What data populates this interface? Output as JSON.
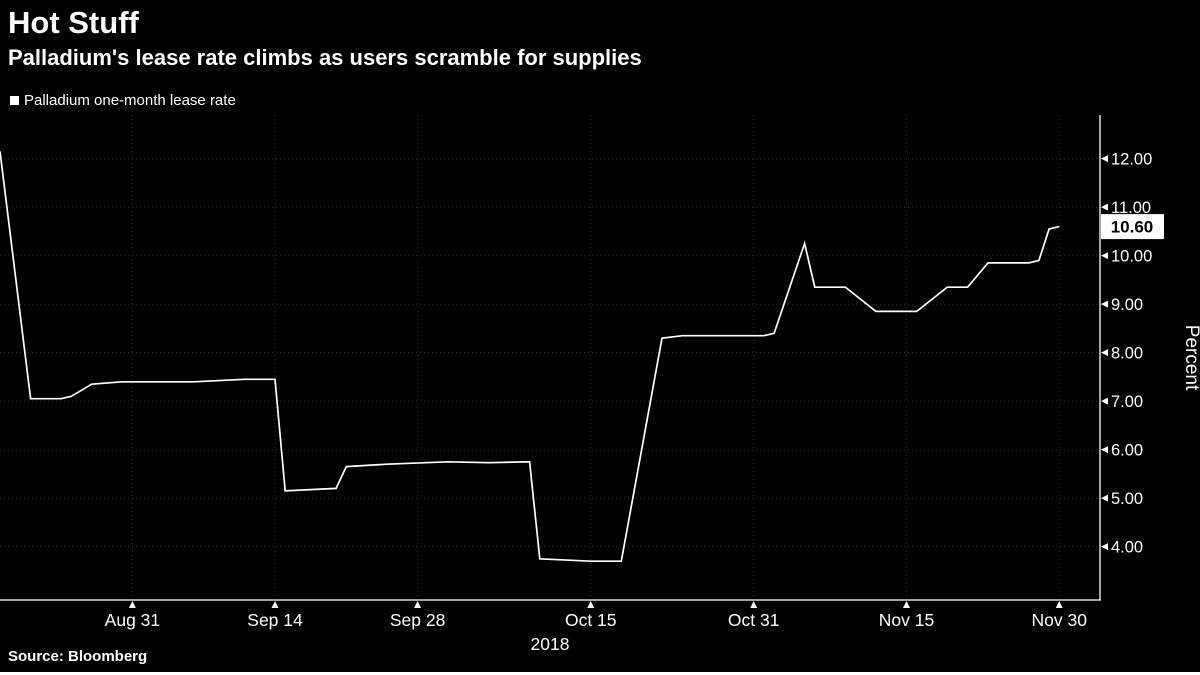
{
  "footer": {
    "source": "Source: Bloomberg"
  },
  "colors": {
    "background": "#000000",
    "grid": "#303030",
    "text": "#ffffff",
    "line": "#ffffff",
    "badge_bg": "#ffffff",
    "badge_text": "#000000"
  },
  "chart_data": {
    "type": "line",
    "title": "Hot Stuff",
    "subtitle": "Palladium's lease rate climbs as users scramble for supplies",
    "ylabel": "Percent",
    "year_label": "2018",
    "grid": true,
    "legend_position": "top-left",
    "ylim": [
      2.9,
      12.9
    ],
    "y_ticks": [
      4,
      5,
      6,
      7,
      8,
      9,
      10,
      11,
      12
    ],
    "x_domain": [
      "Aug 18, 2018",
      "Dec 4, 2018"
    ],
    "x_ticks": [
      {
        "date": "Aug 31, 2018",
        "label": "Aug 31"
      },
      {
        "date": "Sep 14, 2018",
        "label": "Sep 14"
      },
      {
        "date": "Sep 28, 2018",
        "label": "Sep 28"
      },
      {
        "date": "Oct 15, 2018",
        "label": "Oct 15"
      },
      {
        "date": "Oct 31, 2018",
        "label": "Oct 31"
      },
      {
        "date": "Nov 15, 2018",
        "label": "Nov 15"
      },
      {
        "date": "Nov 30, 2018",
        "label": "Nov 30"
      }
    ],
    "last_value_label": "10.60",
    "series": [
      {
        "name": "Palladium one-month lease rate",
        "color": "#ffffff",
        "points": [
          [
            "Aug 18, 2018",
            12.15
          ],
          [
            "Aug 21, 2018",
            7.05
          ],
          [
            "Aug 24, 2018",
            7.05
          ],
          [
            "Aug 25, 2018",
            7.1
          ],
          [
            "Aug 27, 2018",
            7.35
          ],
          [
            "Aug 30, 2018",
            7.4
          ],
          [
            "Sep 6, 2018",
            7.4
          ],
          [
            "Sep 11, 2018",
            7.45
          ],
          [
            "Sep 14, 2018",
            7.45
          ],
          [
            "Sep 15, 2018",
            5.15
          ],
          [
            "Sep 18, 2018",
            5.18
          ],
          [
            "Sep 20, 2018",
            5.2
          ],
          [
            "Sep 21, 2018",
            5.65
          ],
          [
            "Sep 25, 2018",
            5.7
          ],
          [
            "Oct 1, 2018",
            5.75
          ],
          [
            "Oct 5, 2018",
            5.73
          ],
          [
            "Oct 9, 2018",
            5.75
          ],
          [
            "Oct 10, 2018",
            3.75
          ],
          [
            "Oct 15, 2018",
            3.7
          ],
          [
            "Oct 18, 2018",
            3.7
          ],
          [
            "Oct 22, 2018",
            8.3
          ],
          [
            "Oct 24, 2018",
            8.35
          ],
          [
            "Oct 31, 2018",
            8.35
          ],
          [
            "Nov 1, 2018",
            8.35
          ],
          [
            "Nov 2, 2018",
            8.4
          ],
          [
            "Nov 5, 2018",
            10.25
          ],
          [
            "Nov 6, 2018",
            9.35
          ],
          [
            "Nov 9, 2018",
            9.35
          ],
          [
            "Nov 12, 2018",
            8.85
          ],
          [
            "Nov 16, 2018",
            8.85
          ],
          [
            "Nov 19, 2018",
            9.35
          ],
          [
            "Nov 21, 2018",
            9.35
          ],
          [
            "Nov 23, 2018",
            9.85
          ],
          [
            "Nov 27, 2018",
            9.85
          ],
          [
            "Nov 28, 2018",
            9.9
          ],
          [
            "Nov 29, 2018",
            10.55
          ],
          [
            "Nov 30, 2018",
            10.6
          ]
        ]
      }
    ]
  }
}
